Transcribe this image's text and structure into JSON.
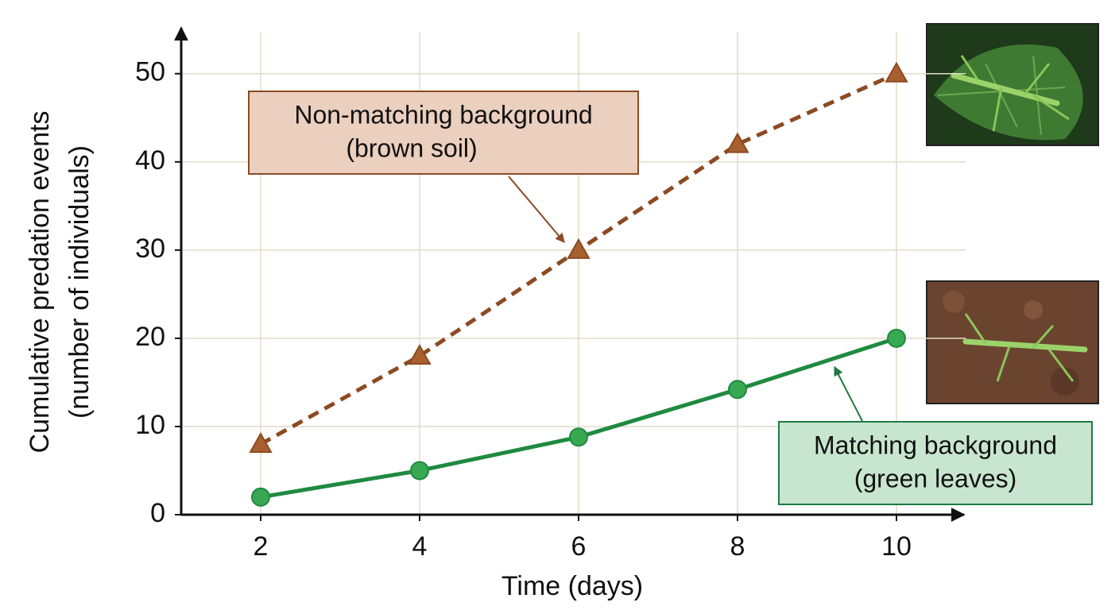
{
  "chart_data": {
    "type": "line",
    "xlabel": "Time (days)",
    "ylabel": [
      "Cumulative predation events",
      "(number of individuals)"
    ],
    "x": [
      2,
      4,
      6,
      8,
      10
    ],
    "series": [
      {
        "name": "Non-matching background",
        "color": "#8b4a22",
        "marker": "triangle",
        "dashed": true,
        "values": [
          8,
          18,
          30,
          42,
          50
        ]
      },
      {
        "name": "Matching background",
        "color": "#1f8a40",
        "marker": "circle",
        "dashed": false,
        "values": [
          2,
          5,
          8.8,
          14.2,
          20
        ]
      }
    ],
    "annotations": [
      {
        "lines": [
          "Non-matching background",
          "(brown soil)"
        ]
      },
      {
        "lines": [
          "Matching background",
          "(green leaves)"
        ]
      }
    ],
    "xlim": [
      1,
      10.85
    ],
    "ylim": [
      0,
      55.2
    ],
    "xticks": [
      2,
      4,
      6,
      8,
      10
    ],
    "yticks": [
      0,
      10,
      20,
      30,
      40,
      50
    ],
    "grid": true
  }
}
